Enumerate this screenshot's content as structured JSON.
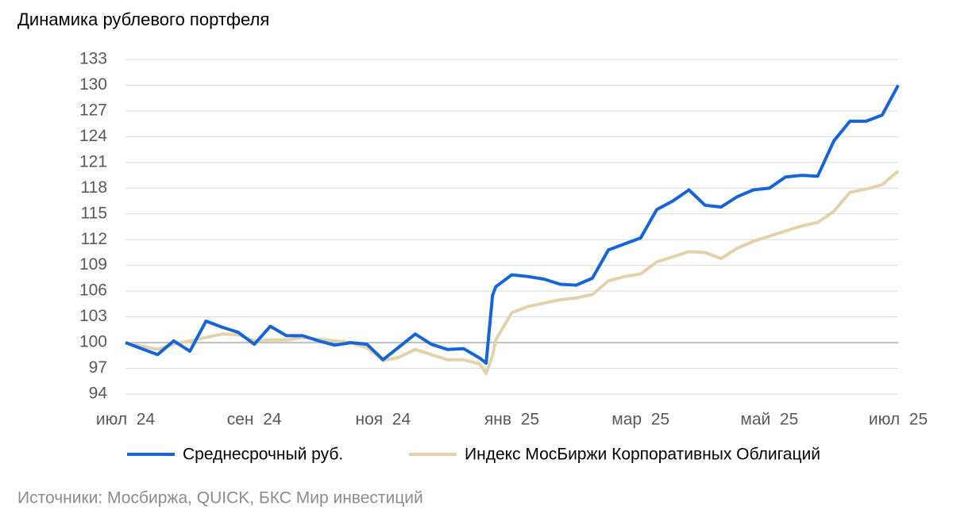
{
  "chart_data": {
    "type": "line",
    "title": "Динамика рублевого портфеля",
    "source": "Источники: Мосбиржа, QUICK, БКС Мир инвестиций",
    "x": [
      0,
      0.25,
      0.5,
      0.75,
      1,
      1.25,
      1.5,
      1.75,
      2,
      2.25,
      2.5,
      2.75,
      3,
      3.25,
      3.5,
      3.75,
      4,
      4.25,
      4.5,
      4.75,
      5,
      5.25,
      5.5,
      5.6,
      5.7,
      5.75,
      6,
      6.25,
      6.5,
      6.75,
      7,
      7.25,
      7.5,
      7.75,
      8,
      8.25,
      8.5,
      8.75,
      9,
      9.25,
      9.5,
      9.75,
      10,
      10.25,
      10.5,
      10.75,
      11,
      11.25,
      11.5,
      11.75,
      12
    ],
    "series": [
      {
        "name": "Среднесрочный руб.",
        "color": "#1565d8",
        "values": [
          100,
          99.3,
          98.6,
          100.2,
          99.0,
          102.5,
          101.8,
          101.2,
          99.8,
          101.9,
          100.8,
          100.8,
          100.2,
          99.7,
          100.0,
          99.8,
          98.0,
          99.5,
          101.0,
          99.8,
          99.2,
          99.3,
          98.2,
          97.6,
          105.5,
          106.5,
          107.9,
          107.7,
          107.4,
          106.8,
          106.7,
          107.5,
          110.8,
          111.5,
          112.2,
          115.5,
          116.5,
          117.8,
          116.0,
          115.8,
          117.0,
          117.8,
          118.0,
          119.3,
          119.5,
          119.4,
          123.5,
          125.8,
          125.8,
          126.5,
          130.0
        ]
      },
      {
        "name": "Индекс МосБиржи Корпоративных Облигаций",
        "color": "#e3d2aa",
        "values": [
          100,
          99.6,
          99.2,
          99.8,
          100.2,
          100.6,
          101.0,
          100.9,
          100.2,
          100.3,
          100.3,
          100.6,
          100.4,
          100.2,
          100.0,
          99.4,
          97.9,
          98.3,
          99.2,
          98.6,
          98.0,
          98.0,
          97.5,
          96.4,
          98.5,
          100.3,
          103.5,
          104.2,
          104.6,
          105.0,
          105.2,
          105.6,
          107.2,
          107.7,
          108.0,
          109.4,
          110.0,
          110.6,
          110.5,
          109.8,
          111.0,
          111.8,
          112.4,
          113.0,
          113.6,
          114.0,
          115.3,
          117.5,
          117.9,
          118.4,
          120.0
        ]
      }
    ],
    "xlim": [
      0,
      12
    ],
    "xticks": [
      {
        "value": 0,
        "label": "июл  24"
      },
      {
        "value": 2,
        "label": "сен  24"
      },
      {
        "value": 4,
        "label": "ноя  24"
      },
      {
        "value": 6,
        "label": "янв  25"
      },
      {
        "value": 8,
        "label": "мар  25"
      },
      {
        "value": 10,
        "label": "май  25"
      },
      {
        "value": 12,
        "label": "июл  25"
      }
    ],
    "ylim": [
      94,
      133
    ],
    "yticks": [
      94,
      97,
      100,
      103,
      106,
      109,
      112,
      115,
      118,
      121,
      124,
      127,
      130,
      133
    ],
    "reference_line": 100,
    "grid": true
  }
}
